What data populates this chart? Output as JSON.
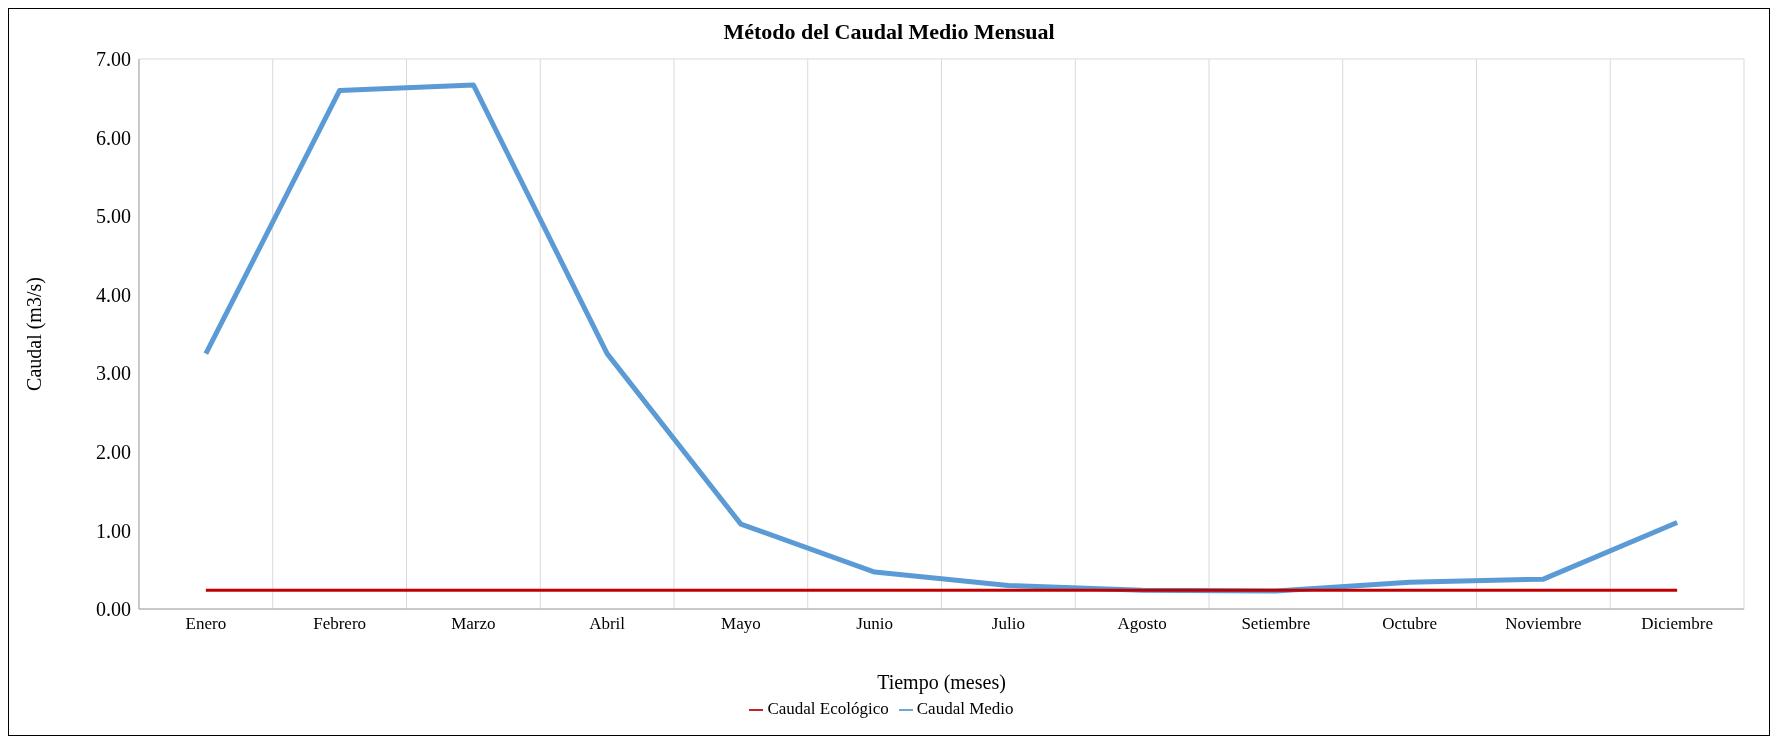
{
  "chart_data": {
    "type": "line",
    "title": "Método del Caudal Medio Mensual",
    "xlabel": "Tiempo (meses)",
    "ylabel": "Caudal (m3/s)",
    "categories": [
      "Enero",
      "Febrero",
      "Marzo",
      "Abril",
      "Mayo",
      "Junio",
      "Julio",
      "Agosto",
      "Setiembre",
      "Octubre",
      "Noviembre",
      "Diciembre"
    ],
    "series": [
      {
        "name": "Caudal Medio",
        "color": "#5b9bd5",
        "values": [
          3.25,
          6.6,
          6.67,
          3.25,
          1.08,
          0.47,
          0.3,
          0.24,
          0.23,
          0.34,
          0.38,
          1.1
        ]
      },
      {
        "name": "Caudal Ecológico",
        "color": "#c00000",
        "values": [
          0.24,
          0.24,
          0.24,
          0.24,
          0.24,
          0.24,
          0.24,
          0.24,
          0.24,
          0.24,
          0.24,
          0.24
        ]
      }
    ],
    "ylim": [
      0,
      7
    ],
    "yticks": [
      {
        "value": 0,
        "label": "0.00"
      },
      {
        "value": 1,
        "label": "1.00"
      },
      {
        "value": 2,
        "label": "2.00"
      },
      {
        "value": 3,
        "label": "3.00"
      },
      {
        "value": 4,
        "label": "4.00"
      },
      {
        "value": 5,
        "label": "5.00"
      },
      {
        "value": 6,
        "label": "6.00"
      },
      {
        "value": 7,
        "label": "7.00"
      }
    ],
    "grid": true,
    "legend": "bottom",
    "marker": "none",
    "line_style": "solid"
  }
}
